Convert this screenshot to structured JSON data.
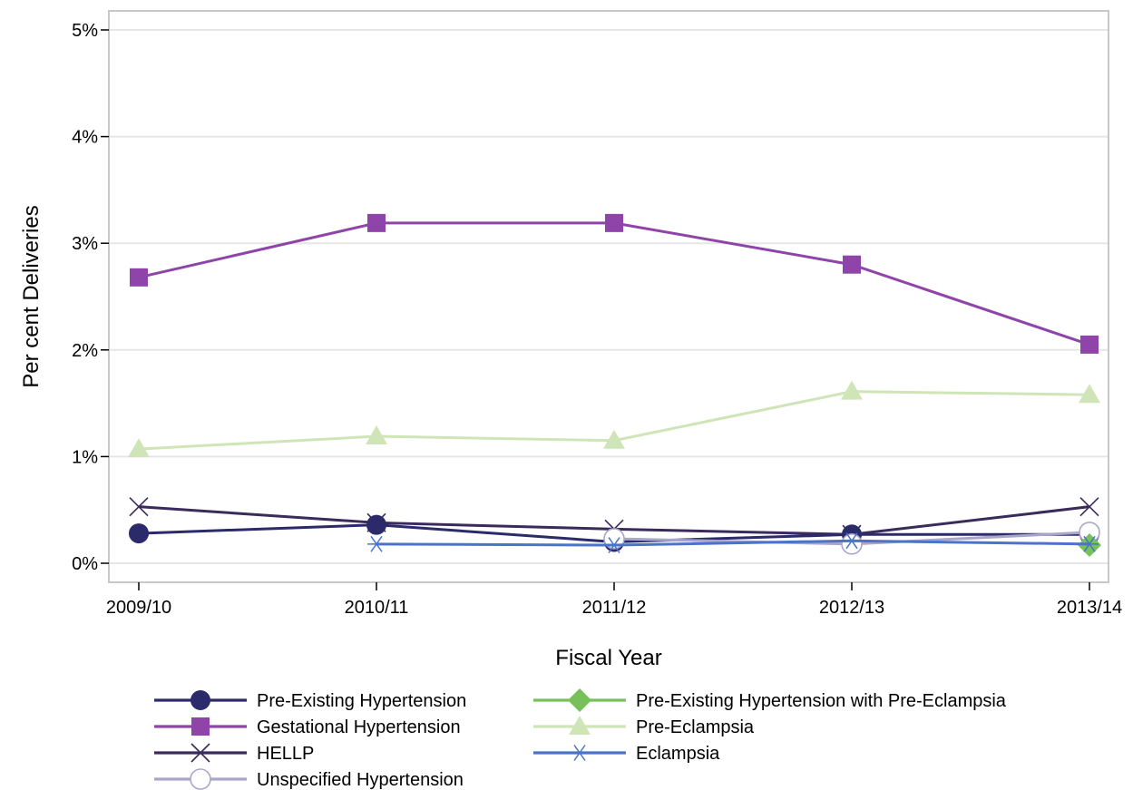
{
  "chart_data": {
    "type": "line",
    "title": "",
    "xlabel": "Fiscal Year",
    "ylabel": "Per cent Deliveries",
    "categories": [
      "2009/10",
      "2010/11",
      "2011/12",
      "2012/13",
      "2013/14"
    ],
    "ylim": [
      0,
      5
    ],
    "yticks": [
      0,
      1,
      2,
      3,
      4,
      5
    ],
    "ytick_labels": [
      "0%",
      "1%",
      "2%",
      "3%",
      "4%",
      "5%"
    ],
    "grid": "horizontal",
    "legend_position": "bottom",
    "series": [
      {
        "name": "Pre-Existing Hypertension",
        "color": "#2b2a6b",
        "marker": "circle",
        "values": [
          0.28,
          0.36,
          0.2,
          0.27,
          0.27
        ]
      },
      {
        "name": "Gestational Hypertension",
        "color": "#8e44a8",
        "marker": "square",
        "values": [
          2.68,
          3.19,
          3.19,
          2.8,
          2.05
        ]
      },
      {
        "name": "HELLP",
        "color": "#3b2a5c",
        "marker": "x",
        "values": [
          0.53,
          0.38,
          0.32,
          0.27,
          0.53
        ]
      },
      {
        "name": "Unspecified Hypertension",
        "color": "#a9a6cc",
        "marker": "open-circle",
        "values": [
          null,
          null,
          0.23,
          0.18,
          0.29
        ]
      },
      {
        "name": "Pre-Existing Hypertension with Pre-Eclampsia",
        "color": "#77c05a",
        "marker": "diamond",
        "values": [
          null,
          null,
          null,
          null,
          0.17
        ]
      },
      {
        "name": "Pre-Eclampsia",
        "color": "#cfe5b8",
        "marker": "triangle",
        "values": [
          1.07,
          1.19,
          1.15,
          1.61,
          1.58
        ]
      },
      {
        "name": "Eclampsia",
        "color": "#4a73c9",
        "marker": "asterisk",
        "values": [
          null,
          0.18,
          0.17,
          0.21,
          0.18
        ]
      }
    ]
  }
}
